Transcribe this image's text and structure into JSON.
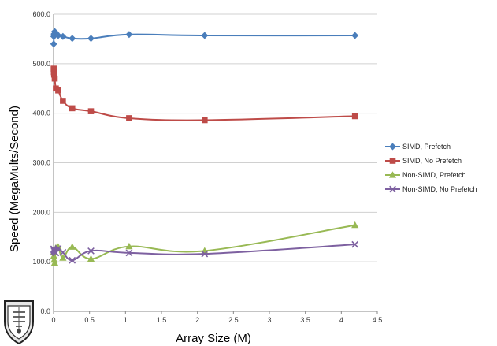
{
  "chart_data": {
    "type": "line",
    "title": "",
    "xlabel": "Array Size (M)",
    "ylabel": "Speed (MegaMults/Second)",
    "xlim": [
      0,
      4.5
    ],
    "ylim": [
      0,
      600
    ],
    "x_ticks": [
      "0",
      "0.5",
      "1",
      "1.5",
      "2",
      "2.5",
      "3",
      "3.5",
      "4",
      "4.5"
    ],
    "y_ticks": [
      "0.0",
      "100.0",
      "200.0",
      "300.0",
      "400.0",
      "500.0",
      "600.0"
    ],
    "grid": "horizontal",
    "legend_position": "right",
    "series": [
      {
        "name": "SIMD, Prefetch",
        "color": "#4a7ebb",
        "marker": "diamond",
        "x": [
          0.002,
          0.004,
          0.008,
          0.016,
          0.032,
          0.065,
          0.13,
          0.26,
          0.52,
          1.05,
          2.1,
          4.19
        ],
        "y": [
          540,
          555,
          560,
          565,
          562,
          557,
          555,
          551,
          551,
          559,
          557,
          557
        ]
      },
      {
        "name": "SIMD, No Prefetch",
        "color": "#be4b48",
        "marker": "square",
        "x": [
          0.002,
          0.004,
          0.008,
          0.016,
          0.032,
          0.065,
          0.13,
          0.26,
          0.52,
          1.05,
          2.1,
          4.19
        ],
        "y": [
          490,
          483,
          478,
          470,
          450,
          446,
          425,
          410,
          404,
          390,
          386,
          394
        ]
      },
      {
        "name": "Non-SIMD, Prefetch",
        "color": "#98b954",
        "marker": "triangle",
        "x": [
          0.002,
          0.004,
          0.008,
          0.016,
          0.032,
          0.065,
          0.13,
          0.26,
          0.52,
          1.05,
          2.1,
          4.19
        ],
        "y": [
          120,
          112,
          104,
          98,
          128,
          130,
          108,
          130,
          106,
          131,
          122,
          174
        ]
      },
      {
        "name": "Non-SIMD, No Prefetch",
        "color": "#7d60a0",
        "marker": "x",
        "x": [
          0.002,
          0.004,
          0.008,
          0.016,
          0.032,
          0.065,
          0.13,
          0.26,
          0.52,
          1.05,
          2.1,
          4.19
        ],
        "y": [
          126,
          124,
          122,
          120,
          118,
          127,
          119,
          103,
          122,
          118,
          116,
          135
        ]
      }
    ]
  },
  "logo": {
    "name": "university-seal"
  }
}
